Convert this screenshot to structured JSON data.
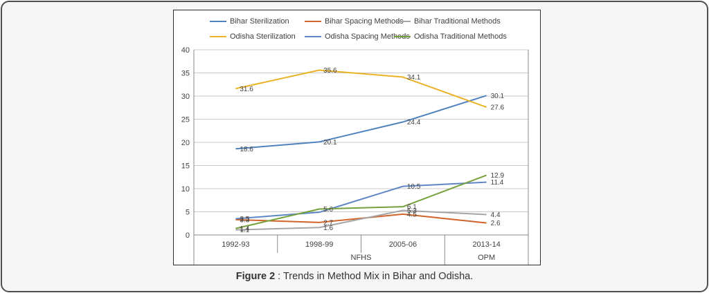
{
  "figure": {
    "caption": {
      "label": "Figure 2",
      "separator": " : ",
      "text": "Trends in Method Mix in Bihar and Odisha."
    }
  },
  "chart_data": {
    "type": "line",
    "title": "",
    "xlabel": "",
    "ylabel": "",
    "categories": [
      "1992-93",
      "1998-99",
      "2005-06",
      "2013-14"
    ],
    "category_groups": [
      {
        "label": "NFHS",
        "span": 3
      },
      {
        "label": "OPM",
        "span": 1
      }
    ],
    "ylim": [
      0,
      40
    ],
    "ytick_step": 5,
    "grid": true,
    "legend_position": "top",
    "series": [
      {
        "name": "Bihar Sterilization",
        "color": "#4F81BD",
        "values": [
          18.6,
          20.1,
          24.4,
          30.1
        ],
        "labels": [
          "18.6",
          "20.1",
          "24.4",
          "30.1"
        ]
      },
      {
        "name": "Bihar Spacing Methods",
        "color": "#D2632A",
        "values": [
          3.3,
          2.7,
          4.5,
          2.6
        ],
        "labels": [
          "3.3",
          "2.7",
          "4.5",
          "2.6"
        ]
      },
      {
        "name": "Bihar Traditional  Methods",
        "color": "#A5A5A5",
        "values": [
          1.1,
          1.6,
          5.3,
          4.4
        ],
        "labels": [
          "1.1",
          "1.6",
          "5.3",
          "4.4"
        ]
      },
      {
        "name": "Odisha Sterilization",
        "color": "#EBB227",
        "values": [
          31.6,
          35.6,
          34.1,
          27.6
        ],
        "labels": [
          "31.6",
          "35.6",
          "34.1",
          "27.6"
        ]
      },
      {
        "name": "Odisha Spacing Methods",
        "color": "#5E86C4",
        "values": [
          3.5,
          4.9,
          10.5,
          11.4
        ],
        "labels": [
          "3.5",
          "",
          "10.5",
          "11.4"
        ]
      },
      {
        "name": "Odisha Traditional Methods",
        "color": "#76A03C",
        "values": [
          1.4,
          5.6,
          6.1,
          12.9
        ],
        "labels": [
          "1.4",
          "5.6",
          "6.1",
          "12.9"
        ]
      }
    ]
  }
}
